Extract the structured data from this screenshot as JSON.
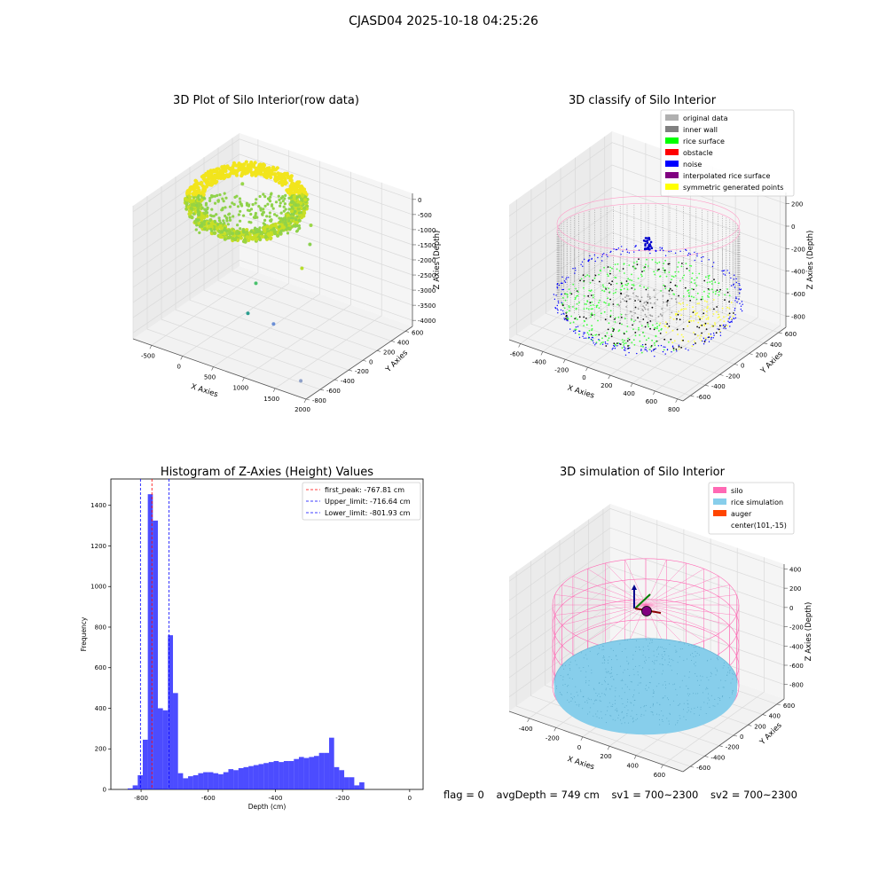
{
  "suptitle": "CJASD04 2025-10-18 04:25:26",
  "footer": {
    "flag": "flag = 0",
    "avg": "avgDepth = 749 cm",
    "sv1": "sv1 = 700~2300",
    "sv2": "sv2 = 700~2300"
  },
  "chart_data": [
    {
      "type": "scatter",
      "dims": 3,
      "title": "3D Plot of Silo Interior(row data)",
      "xlabel": "X Axies",
      "ylabel": "Y Axies",
      "zlabel": "Z Axies (Depth)",
      "x_ticks": [
        -500,
        0,
        500,
        1000,
        1500,
        2000
      ],
      "y_ticks": [
        -800,
        -600,
        -400,
        -200,
        0,
        200,
        400,
        600
      ],
      "z_ticks": [
        -4000,
        -3500,
        -3000,
        -2500,
        -2000,
        -1500,
        -1000,
        -500,
        0
      ],
      "xlim": [
        -800,
        2000
      ],
      "ylim": [
        -800,
        700
      ],
      "zlim": [
        -4200,
        200
      ],
      "colors": {
        "high": "#f0e51a",
        "low": "#7fd34e"
      },
      "outliers": [
        {
          "x": -350,
          "y": 350,
          "z": -600,
          "color": "#98d64a"
        },
        {
          "x": 700,
          "y": 400,
          "z": -1300,
          "color": "#9cd748"
        },
        {
          "x": 800,
          "y": 300,
          "z": -1700,
          "color": "#8ad150"
        },
        {
          "x": 900,
          "y": 100,
          "z": -2100,
          "color": "#b6de2b"
        },
        {
          "x": 500,
          "y": -200,
          "z": -2400,
          "color": "#4ac16d"
        },
        {
          "x": 600,
          "y": -400,
          "z": -3000,
          "color": "#2a9d8f"
        },
        {
          "x": 900,
          "y": -300,
          "z": -3300,
          "color": "#6b8fd6"
        },
        {
          "x": 1800,
          "y": -700,
          "z": -3900,
          "color": "#8ea0c8"
        }
      ]
    },
    {
      "type": "scatter",
      "dims": 3,
      "title": "3D classify of Silo Interior",
      "xlabel": "X Axies",
      "ylabel": "Y Axies",
      "zlabel": "Z Axies (Depth)",
      "x_ticks": [
        -600,
        -400,
        -200,
        0,
        200,
        400,
        600,
        800
      ],
      "y_ticks": [
        -600,
        -400,
        -200,
        0,
        200,
        400,
        600
      ],
      "z_ticks": [
        -800,
        -600,
        -400,
        -200,
        0,
        200
      ],
      "xlim": [
        -700,
        850
      ],
      "ylim": [
        -700,
        700
      ],
      "zlim": [
        -900,
        300
      ],
      "legend_position": "upper-right",
      "legend": [
        {
          "label": "original data",
          "color": "#b0b0b0"
        },
        {
          "label": "inner wall",
          "color": "#808080"
        },
        {
          "label": "rice surface",
          "color": "#00ff00"
        },
        {
          "label": "obstacle",
          "color": "#ff0000"
        },
        {
          "label": "noise",
          "color": "#0000ff"
        },
        {
          "label": "interpolated rice surface",
          "color": "#800080"
        },
        {
          "label": "symmetric generated points",
          "color": "#ffff00"
        }
      ]
    },
    {
      "type": "bar",
      "title": "Histogram of Z-Axies (Height) Values",
      "xlabel": "Depth (cm)",
      "ylabel": "Frequency",
      "xlim": [
        -890,
        40
      ],
      "ylim": [
        0,
        1530
      ],
      "x_ticks": [
        -800,
        -600,
        -400,
        -200,
        0
      ],
      "y_ticks": [
        0,
        200,
        400,
        600,
        800,
        1000,
        1200,
        1400
      ],
      "bin_start": -840,
      "bin_width": 15,
      "values": [
        5,
        20,
        70,
        245,
        1455,
        1325,
        400,
        390,
        760,
        475,
        80,
        55,
        65,
        70,
        80,
        85,
        85,
        80,
        75,
        85,
        100,
        95,
        105,
        110,
        115,
        120,
        125,
        130,
        135,
        140,
        135,
        140,
        140,
        150,
        160,
        155,
        160,
        165,
        180,
        180,
        255,
        110,
        95,
        60,
        60,
        20,
        35
      ],
      "bar_color": "#0000ff",
      "legend_position": "upper-right",
      "vlines": [
        {
          "label": "first_peak: -767.81 cm",
          "x": -767.81,
          "color": "#ff0000"
        },
        {
          "label": "Upper_limit: -716.64 cm",
          "x": -716.64,
          "color": "#0000ff"
        },
        {
          "label": "Lower_limit: -801.93 cm",
          "x": -801.93,
          "color": "#0000ff"
        }
      ]
    },
    {
      "type": "surface",
      "dims": 3,
      "title": "3D simulation of Silo Interior",
      "xlabel": "X Axies",
      "ylabel": "Y Axies",
      "zlabel": "Z Axies (Depth)",
      "x_ticks": [
        -400,
        -200,
        0,
        200,
        400,
        600
      ],
      "y_ticks": [
        -600,
        -400,
        -200,
        0,
        200,
        400,
        600
      ],
      "z_ticks": [
        -800,
        -600,
        -400,
        -200,
        0,
        200,
        400
      ],
      "xlim": [
        -550,
        750
      ],
      "ylim": [
        -700,
        700
      ],
      "zlim": [
        -950,
        450
      ],
      "legend_position": "upper-right",
      "legend": [
        {
          "label": "silo",
          "color": "#ff69b4"
        },
        {
          "label": "rice simulation",
          "color": "#87ceeb"
        },
        {
          "label": "auger",
          "color": "#ff4500"
        },
        {
          "label": "center(101,-15)",
          "color": "none"
        }
      ]
    }
  ]
}
